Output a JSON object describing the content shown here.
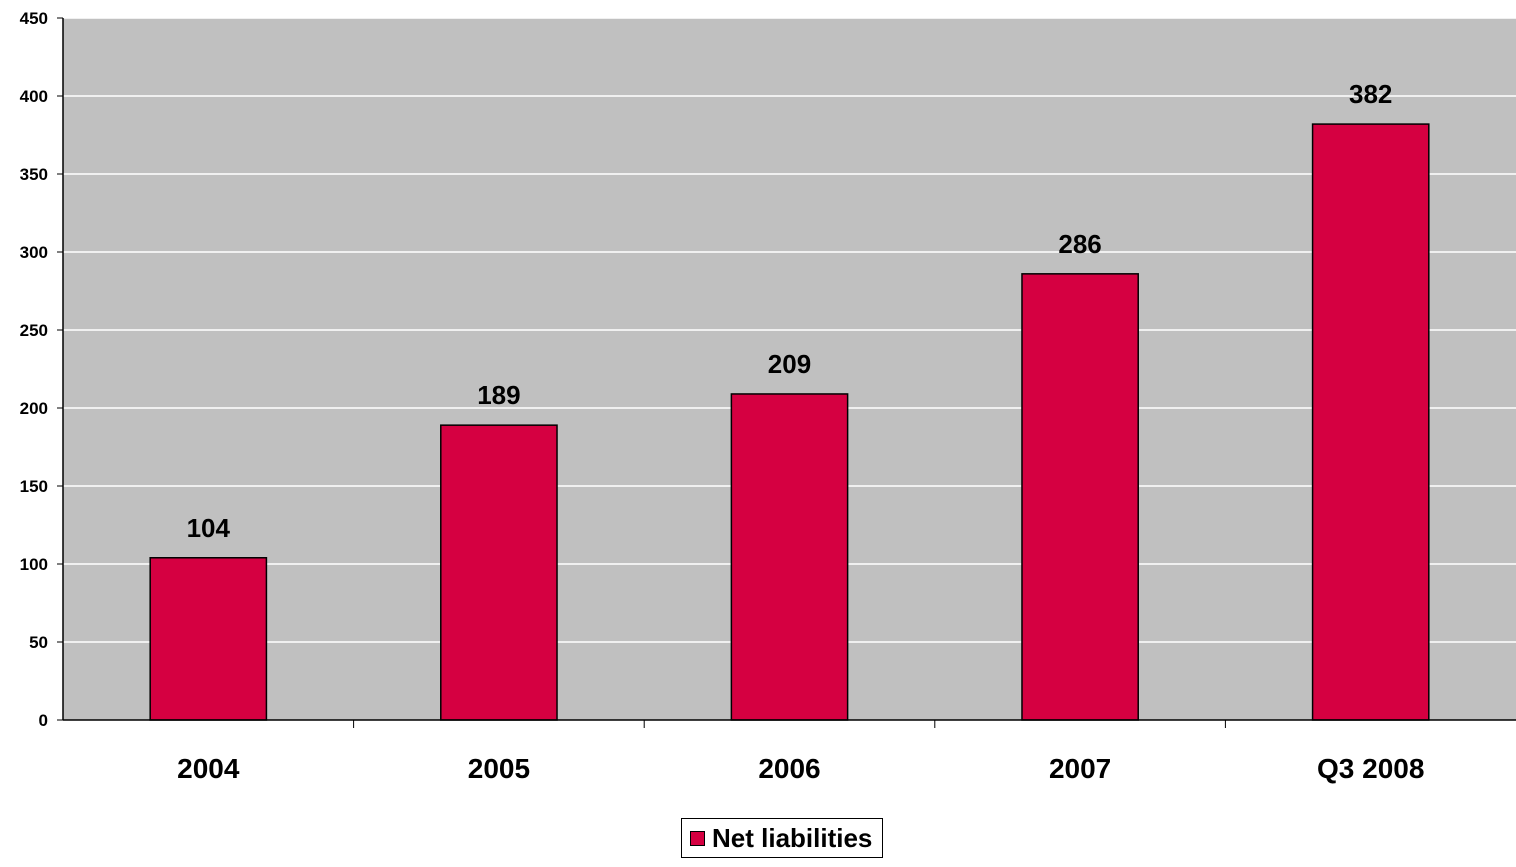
{
  "chart_data": {
    "type": "bar",
    "categories": [
      "2004",
      "2005",
      "2006",
      "2007",
      "Q3 2008"
    ],
    "series": [
      {
        "name": "Net liabilities",
        "values": [
          104,
          189,
          209,
          286,
          382
        ]
      }
    ],
    "data_labels": [
      "104",
      "189",
      "209",
      "286",
      "382"
    ],
    "ylim": [
      0,
      450
    ],
    "yticks": [
      0,
      50,
      100,
      150,
      200,
      250,
      300,
      350,
      400,
      450
    ],
    "grid": true,
    "legend_position": "bottom-center",
    "colors": {
      "bar": "#D50041",
      "plot_background": "#C0C0C0",
      "gridline": "#FFFFFF"
    }
  }
}
